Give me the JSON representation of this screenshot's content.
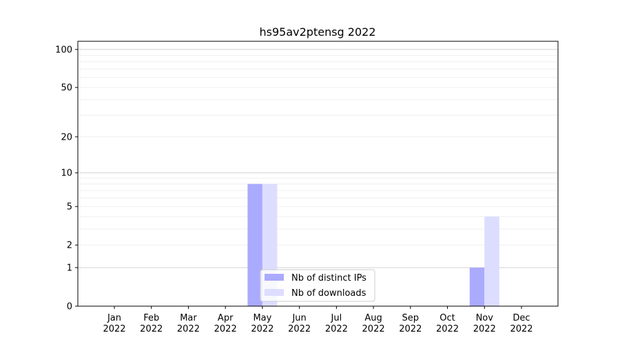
{
  "chart_data": {
    "type": "bar",
    "title": "hs95av2ptensg 2022",
    "xlabel": "",
    "ylabel": "",
    "yscale": "symlog (log10(1+y))",
    "ylim": [
      0,
      116
    ],
    "yticks": [
      0,
      1,
      2,
      5,
      10,
      20,
      50,
      100
    ],
    "ytick_labels": [
      "0",
      "1",
      "2",
      "5",
      "10",
      "20",
      "50",
      "100"
    ],
    "grid": true,
    "legend_position": "lower center",
    "categories": [
      "Jan\n2022",
      "Feb\n2022",
      "Mar\n2022",
      "Apr\n2022",
      "May\n2022",
      "Jun\n2022",
      "Jul\n2022",
      "Aug\n2022",
      "Sep\n2022",
      "Oct\n2022",
      "Nov\n2022",
      "Dec\n2022"
    ],
    "series": [
      {
        "name": "Nb of distinct IPs",
        "color": "#aaaaff",
        "values": [
          0,
          0,
          0,
          0,
          8,
          0,
          0,
          0,
          0,
          0,
          1,
          0
        ]
      },
      {
        "name": "Nb of downloads",
        "color": "#ddddff",
        "values": [
          0,
          0,
          0,
          0,
          8,
          0,
          0,
          0,
          0,
          0,
          4,
          0
        ]
      }
    ]
  }
}
